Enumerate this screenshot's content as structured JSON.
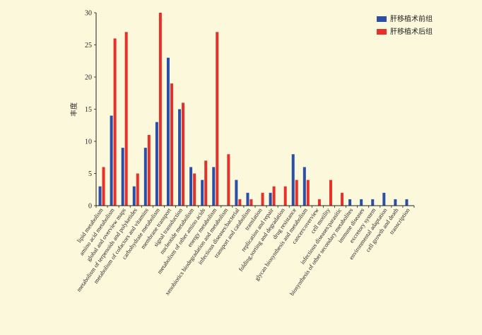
{
  "chart_data": {
    "type": "bar",
    "ylabel": "丰度",
    "xlabel": "",
    "ylim": [
      0,
      30
    ],
    "yticks": [
      0,
      5,
      10,
      15,
      20,
      25,
      30
    ],
    "grid": false,
    "legend_position": "top-right",
    "categories": [
      "lipid metabolism",
      "amino acid metabolism",
      "global and overview maps",
      "metabolism of terpenoids and polyketides",
      "metabolism of cofactors and vitamins",
      "carbohydrate metabolism",
      "membrane transport",
      "signal transduction",
      "nucleotide metabolism",
      "metabolism of other amino acids",
      "energy metabolism",
      "xenobiotics biodegradation and metabolism",
      "infectious diseases:bacterial",
      "transport and catabolism",
      "translation",
      "replication and repair",
      "folding,sorting and degradation",
      "drug resistance",
      "glycan biosynthesis and metabolism",
      "cancers:overview",
      "cell motility",
      "infectious diseases:parasitic",
      "biosynthesis of other secondary metabolites",
      "immune diseases",
      "excretory system",
      "environmental adaptation",
      "cell growth and death",
      "transcription"
    ],
    "series": [
      {
        "name": "肝移植术前组",
        "color": "#2a4fa8",
        "values": [
          3,
          14,
          9,
          3,
          9,
          13,
          23,
          15,
          6,
          4,
          6,
          0,
          4,
          2,
          0,
          2,
          0,
          8,
          6,
          0,
          0,
          0,
          1,
          1,
          1,
          2,
          1,
          1
        ]
      },
      {
        "name": "肝移植术后组",
        "color": "#e8302a",
        "values": [
          6,
          26,
          27,
          5,
          11,
          30,
          19,
          16,
          5,
          7,
          27,
          8,
          1,
          1,
          2,
          3,
          3,
          4,
          4,
          1,
          4,
          2,
          0,
          0,
          0,
          0,
          0,
          0
        ]
      }
    ]
  }
}
